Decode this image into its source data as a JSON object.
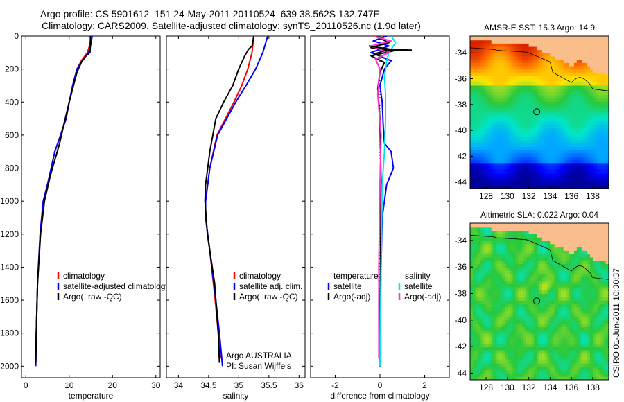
{
  "header": {
    "line1": "Argo profile: CS 5901612_151 24-May-2011 20110524_639 38.562S 132.747E",
    "line2": "Climatology: CARS2009. Satellite-adjusted climatology: synTS_20110526.nc (1.9d later)"
  },
  "side_stamp": "CSIRO 01-Jun-2011 10:30:37",
  "chart_data": [
    {
      "type": "line",
      "id": "temperature",
      "xlabel": "temperature",
      "ylabel": "",
      "xlim": [
        -1,
        31
      ],
      "ylim": [
        2070,
        0
      ],
      "xticks": [
        0,
        10,
        20,
        30
      ],
      "yticks": [
        0,
        200,
        400,
        600,
        800,
        1000,
        1200,
        1400,
        1600,
        1800,
        2000
      ],
      "legend": [
        "climatology",
        "satellite-adjusted climatology",
        "Argo(..raw -QC)"
      ],
      "series": [
        {
          "name": "climatology",
          "color": "#ff0000",
          "x": [
            15.0,
            14.8,
            14.2,
            12.8,
            11.8,
            10.8,
            10.0,
            9.3,
            8.0,
            6.7,
            5.0,
            4.0,
            3.3,
            2.7,
            2.4,
            2.3
          ],
          "y": [
            0,
            50,
            100,
            150,
            200,
            300,
            400,
            500,
            600,
            700,
            900,
            1000,
            1200,
            1500,
            1800,
            1950
          ]
        },
        {
          "name": "satellite-adjusted climatology",
          "color": "#0000ff",
          "x": [
            15.3,
            15.0,
            14.5,
            13.0,
            11.8,
            10.8,
            10.0,
            9.3,
            8.0,
            6.7,
            5.0,
            4.0,
            3.3,
            2.7,
            2.4,
            2.3
          ],
          "y": [
            0,
            50,
            100,
            150,
            200,
            300,
            400,
            500,
            600,
            700,
            900,
            1000,
            1200,
            1500,
            1800,
            2000
          ]
        },
        {
          "name": "Argo(..raw -QC)",
          "color": "#000000",
          "x": [
            14.9,
            14.9,
            14.8,
            13.9,
            12.8,
            11.8,
            11.0,
            10.0,
            8.9,
            7.8,
            5.6,
            4.3,
            3.4,
            2.7,
            2.4,
            2.3
          ],
          "y": [
            0,
            50,
            100,
            120,
            160,
            220,
            300,
            400,
            520,
            650,
            850,
            1000,
            1200,
            1500,
            1800,
            1980
          ]
        }
      ]
    },
    {
      "type": "line",
      "id": "salinity",
      "xlabel": "salinity",
      "ylabel": "",
      "xlim": [
        33.8,
        36.1
      ],
      "ylim": [
        2070,
        0
      ],
      "xticks": [
        34,
        34.5,
        35,
        35.5,
        36
      ],
      "xticklabels": [
        "34",
        "34.5",
        "35",
        "35.5",
        "36"
      ],
      "legend": [
        "climatology",
        "satellite adj. clim.",
        "Argo(..raw -QC)"
      ],
      "annotation": [
        "Argo AUSTRALIA",
        "PI: Susan Wijffels"
      ],
      "series": [
        {
          "name": "climatology",
          "color": "#ff0000",
          "x": [
            35.25,
            35.22,
            35.15,
            35.05,
            34.92,
            34.78,
            34.64,
            34.52,
            34.45,
            34.45,
            34.52,
            34.61,
            34.66,
            34.7
          ],
          "y": [
            0,
            100,
            200,
            300,
            400,
            500,
            600,
            800,
            1000,
            1100,
            1300,
            1600,
            1800,
            1950
          ]
        },
        {
          "name": "satellite adj. clim.",
          "color": "#0000ff",
          "x": [
            35.48,
            35.4,
            35.28,
            35.12,
            34.95,
            34.8,
            34.65,
            34.52,
            34.45,
            34.45,
            34.52,
            34.62,
            34.68,
            34.73
          ],
          "y": [
            0,
            100,
            200,
            300,
            400,
            500,
            600,
            800,
            1000,
            1100,
            1300,
            1600,
            1800,
            2000
          ]
        },
        {
          "name": "Argo(..raw -QC)",
          "color": "#000000",
          "x": [
            35.25,
            35.22,
            35.16,
            35.1,
            35.0,
            34.9,
            34.75,
            34.62,
            34.52,
            34.45,
            34.44,
            34.48,
            34.6,
            34.66,
            34.68
          ],
          "y": [
            0,
            60,
            80,
            120,
            200,
            300,
            400,
            500,
            700,
            900,
            1000,
            1200,
            1500,
            1800,
            1980
          ]
        }
      ]
    },
    {
      "type": "line",
      "id": "difference",
      "xlabel": "difference from climatology",
      "ylabel": "",
      "xlim": [
        -3.1,
        3.1
      ],
      "ylim": [
        2070,
        0
      ],
      "xticks": [
        -2,
        0,
        2
      ],
      "legend_left_title": "temperature",
      "legend_right_title": "salinity",
      "legend_left": [
        "satellite",
        "Argo(-adj)"
      ],
      "legend_right": [
        "satellite",
        "Argo(-adj)"
      ],
      "series": [
        {
          "name": "temperature satellite",
          "color": "#0000ff",
          "x": [
            0.3,
            -0.3,
            0.4,
            -0.4,
            0.5,
            0.2,
            0.0,
            0.1,
            0.15,
            0.2,
            0.5,
            0.6,
            0.3,
            0.1,
            0.05,
            0.0,
            0.0
          ],
          "y": [
            0,
            30,
            60,
            100,
            150,
            200,
            300,
            400,
            550,
            650,
            700,
            800,
            900,
            1100,
            1400,
            1800,
            2000
          ]
        },
        {
          "name": "temperature Argo(-adj)",
          "color": "#000000",
          "x": [
            -0.2,
            0.4,
            -0.4,
            0.6,
            -0.4,
            0.2,
            0.0,
            -0.1,
            0.0,
            0.05,
            0.0
          ],
          "y": [
            0,
            40,
            70,
            90,
            120,
            160,
            220,
            320,
            500,
            900,
            1980
          ]
        },
        {
          "name": "salinity satellite",
          "color": "#00e5ee",
          "x": [
            0.5,
            0.7,
            0.4,
            0.3,
            0.2,
            0.25,
            0.25,
            0.2,
            0.1,
            0.05,
            0.0
          ],
          "y": [
            0,
            40,
            100,
            150,
            250,
            350,
            500,
            700,
            900,
            1400,
            2000
          ]
        },
        {
          "name": "salinity Argo(-adj)",
          "color": "#ff33cc",
          "x": [
            -0.3,
            0.5,
            -0.4,
            0.4,
            -0.2,
            0.0,
            -0.1,
            0.05,
            0.0,
            -0.05,
            -0.05
          ],
          "y": [
            0,
            30,
            60,
            100,
            140,
            200,
            350,
            600,
            900,
            1400,
            1950
          ]
        },
        {
          "name": "temperature Argo spike",
          "color": "#000000",
          "x": [
            -0.5,
            0.5,
            1.4,
            0.2,
            -0.3
          ],
          "y": [
            60,
            80,
            85,
            90,
            110
          ]
        }
      ]
    },
    {
      "type": "heatmap",
      "id": "sst-map",
      "title": "AMSR-E SST: 15.3 Argo: 14.9",
      "xlim": [
        126.5,
        139.5
      ],
      "ylim": [
        -44.5,
        -32.7
      ],
      "xticks": [
        128,
        130,
        132,
        134,
        136,
        138
      ],
      "yticks": [
        -34,
        -36,
        -38,
        -40,
        -42,
        -44
      ],
      "marker": {
        "lon": 132.747,
        "lat": -38.562
      }
    },
    {
      "type": "heatmap",
      "id": "sla-map",
      "title": "Altimetric SLA: 0.022 Argo: 0.04",
      "xlim": [
        126.5,
        139.5
      ],
      "ylim": [
        -44.5,
        -32.7
      ],
      "xticks": [
        128,
        130,
        132,
        134,
        136,
        138
      ],
      "yticks": [
        -34,
        -36,
        -38,
        -40,
        -42,
        -44
      ],
      "marker": {
        "lon": 132.747,
        "lat": -38.562
      }
    }
  ]
}
